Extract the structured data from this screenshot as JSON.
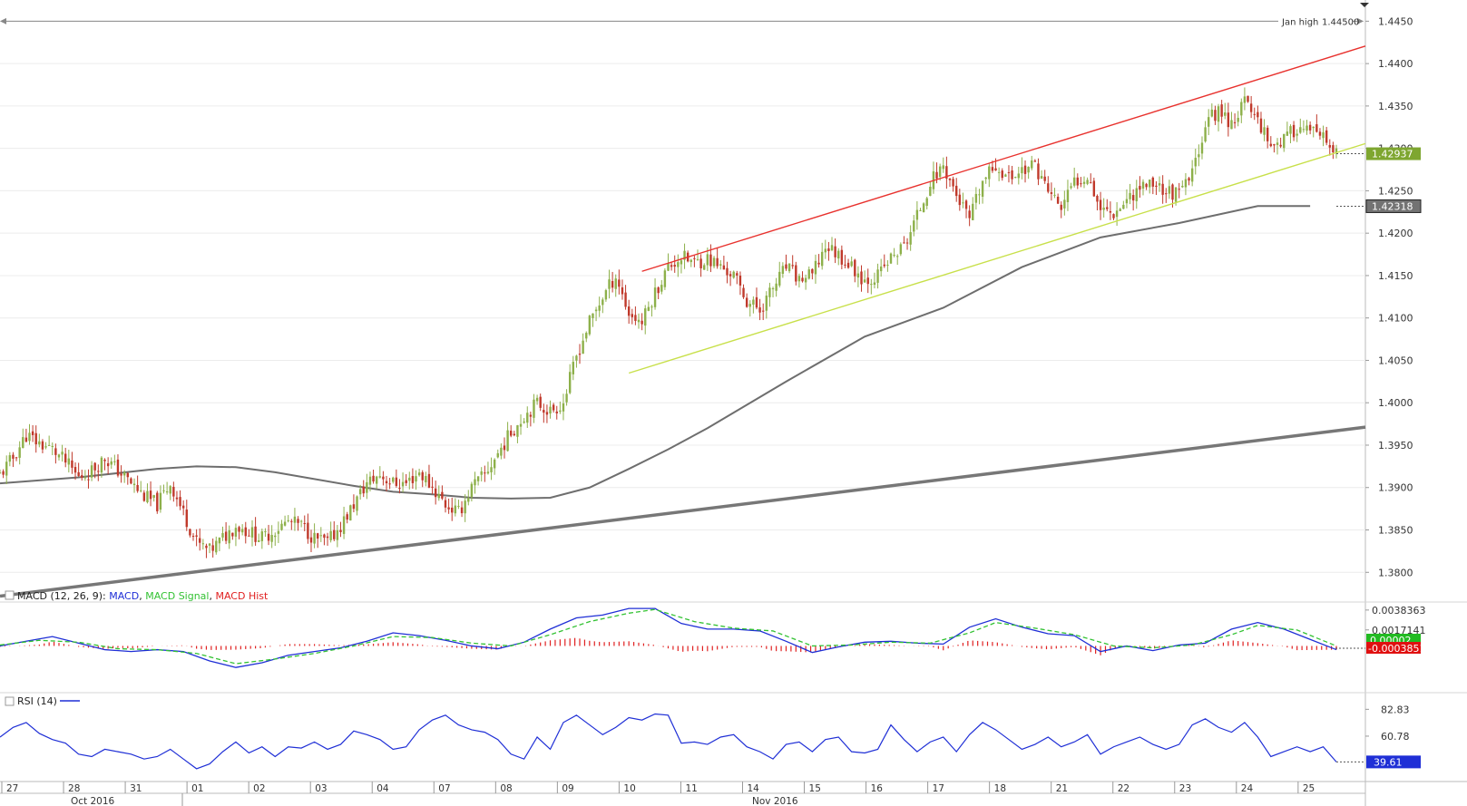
{
  "colors": {
    "up_candle": "#8db04a",
    "down_candle": "#c0392b",
    "channel_upper": "#e8322e",
    "channel_lower": "#c8e04a",
    "moving_average": "#6e6e6e",
    "long_trendline": "#777777",
    "macd_line": "#1f2fd6",
    "macd_signal": "#33c233",
    "macd_hist": "#e02020",
    "rsi_line": "#1f2fd6",
    "grid": "#ececec"
  },
  "chart_data": [
    {
      "type": "candlestick",
      "panel": "price",
      "y_ticks": [
        "1.4450",
        "1.4400",
        "1.4350",
        "1.4300",
        "1.4250",
        "1.4200",
        "1.4150",
        "1.4100",
        "1.4050",
        "1.4000",
        "1.3950",
        "1.3900",
        "1.3850",
        "1.3800"
      ],
      "ylim": [
        1.3765,
        1.4475
      ],
      "x_labels": [
        "27",
        "28",
        "31",
        "01",
        "02",
        "03",
        "04",
        "07",
        "08",
        "09",
        "10",
        "11",
        "14",
        "15",
        "16",
        "17",
        "18",
        "21",
        "22",
        "23",
        "24",
        "25"
      ],
      "x_month_labels": [
        "Oct 2016",
        "Nov 2016"
      ],
      "annotations": {
        "jan_high_label": "Jan high",
        "jan_high_value": "1.44500",
        "jan_high_level": 1.445
      },
      "badges": {
        "last_price": "1.42937",
        "ma_value": "1.42318"
      },
      "close_path": [
        [
          0,
          1.3915
        ],
        [
          4,
          1.3935
        ],
        [
          8,
          1.3962
        ],
        [
          12,
          1.3952
        ],
        [
          16,
          1.3945
        ],
        [
          20,
          1.393
        ],
        [
          24,
          1.3912
        ],
        [
          28,
          1.392
        ],
        [
          32,
          1.3935
        ],
        [
          36,
          1.392
        ],
        [
          40,
          1.3905
        ],
        [
          44,
          1.389
        ],
        [
          48,
          1.388
        ],
        [
          52,
          1.3905
        ],
        [
          56,
          1.387
        ],
        [
          60,
          1.3835
        ],
        [
          64,
          1.3825
        ],
        [
          68,
          1.384
        ],
        [
          72,
          1.3855
        ],
        [
          76,
          1.3848
        ],
        [
          80,
          1.384
        ],
        [
          84,
          1.385
        ],
        [
          88,
          1.386
        ],
        [
          92,
          1.3855
        ],
        [
          96,
          1.384
        ],
        [
          100,
          1.3835
        ],
        [
          104,
          1.3855
        ],
        [
          108,
          1.388
        ],
        [
          112,
          1.3905
        ],
        [
          116,
          1.3915
        ],
        [
          120,
          1.3905
        ],
        [
          124,
          1.3905
        ],
        [
          128,
          1.3918
        ],
        [
          132,
          1.39
        ],
        [
          136,
          1.388
        ],
        [
          140,
          1.387
        ],
        [
          144,
          1.39
        ],
        [
          148,
          1.3915
        ],
        [
          152,
          1.394
        ],
        [
          156,
          1.3965
        ],
        [
          160,
          1.3985
        ],
        [
          164,
          1.4
        ],
        [
          168,
          1.399
        ],
        [
          172,
          1.4
        ],
        [
          176,
          1.4055
        ],
        [
          180,
          1.4095
        ],
        [
          184,
          1.4125
        ],
        [
          188,
          1.415
        ],
        [
          192,
          1.4105
        ],
        [
          196,
          1.4095
        ],
        [
          200,
          1.413
        ],
        [
          204,
          1.416
        ],
        [
          208,
          1.4172
        ],
        [
          212,
          1.4165
        ],
        [
          216,
          1.417
        ],
        [
          220,
          1.416
        ],
        [
          224,
          1.415
        ],
        [
          228,
          1.412
        ],
        [
          232,
          1.411
        ],
        [
          236,
          1.4135
        ],
        [
          240,
          1.416
        ],
        [
          244,
          1.4145
        ],
        [
          248,
          1.415
        ],
        [
          252,
          1.4185
        ],
        [
          256,
          1.4175
        ],
        [
          260,
          1.416
        ],
        [
          264,
          1.4145
        ],
        [
          268,
          1.415
        ],
        [
          272,
          1.417
        ],
        [
          276,
          1.4185
        ],
        [
          280,
          1.422
        ],
        [
          284,
          1.426
        ],
        [
          288,
          1.428
        ],
        [
          292,
          1.4245
        ],
        [
          296,
          1.4215
        ],
        [
          300,
          1.426
        ],
        [
          304,
          1.428
        ],
        [
          308,
          1.4265
        ],
        [
          312,
          1.4275
        ],
        [
          316,
          1.428
        ],
        [
          320,
          1.425
        ],
        [
          324,
          1.423
        ],
        [
          328,
          1.426
        ],
        [
          332,
          1.427
        ],
        [
          336,
          1.423
        ],
        [
          340,
          1.4225
        ],
        [
          344,
          1.424
        ],
        [
          348,
          1.4255
        ],
        [
          352,
          1.426
        ],
        [
          356,
          1.425
        ],
        [
          360,
          1.4245
        ],
        [
          364,
          1.427
        ],
        [
          368,
          1.433
        ],
        [
          372,
          1.4345
        ],
        [
          376,
          1.433
        ],
        [
          380,
          1.4355
        ],
        [
          384,
          1.4335
        ],
        [
          388,
          1.4305
        ],
        [
          392,
          1.431
        ],
        [
          396,
          1.4325
        ],
        [
          400,
          1.432
        ],
        [
          404,
          1.431
        ],
        [
          408,
          1.4294
        ]
      ],
      "moving_average_path": [
        [
          0,
          1.3905
        ],
        [
          24,
          1.3912
        ],
        [
          48,
          1.3922
        ],
        [
          60,
          1.3925
        ],
        [
          72,
          1.3924
        ],
        [
          84,
          1.3918
        ],
        [
          108,
          1.3902
        ],
        [
          120,
          1.3895
        ],
        [
          132,
          1.3892
        ],
        [
          144,
          1.3888
        ],
        [
          156,
          1.3887
        ],
        [
          168,
          1.3888
        ],
        [
          180,
          1.39
        ],
        [
          192,
          1.3922
        ],
        [
          204,
          1.3945
        ],
        [
          216,
          1.397
        ],
        [
          240,
          1.4025
        ],
        [
          264,
          1.4078
        ],
        [
          288,
          1.4112
        ],
        [
          312,
          1.416
        ],
        [
          336,
          1.4195
        ],
        [
          360,
          1.4212
        ],
        [
          384,
          1.4232
        ],
        [
          400,
          1.4232
        ]
      ],
      "channel_upper": [
        [
          196,
          1.4155
        ],
        [
          408,
          1.441
        ]
      ],
      "channel_lower": [
        [
          192,
          1.4035
        ],
        [
          408,
          1.4295
        ]
      ],
      "long_trendline": [
        [
          0,
          1.3772
        ],
        [
          408,
          1.3967
        ]
      ]
    },
    {
      "type": "line",
      "panel": "macd",
      "legend": {
        "prefix": "MACD (12, 26, 9): ",
        "macd": "MACD",
        "signal": "MACD Signal",
        "hist": "MACD Hist"
      },
      "y_ticks": [
        "0.0038363",
        "0.0017141"
      ],
      "ylim": [
        -0.0048,
        0.0045
      ],
      "badges": {
        "signal_value": "0.00002",
        "hist_value": "-0.0003851"
      },
      "macd_path": [
        [
          0,
          0.0
        ],
        [
          8,
          0.0005
        ],
        [
          16,
          0.001
        ],
        [
          24,
          0.0003
        ],
        [
          32,
          -0.0004
        ],
        [
          40,
          -0.0006
        ],
        [
          48,
          -0.0004
        ],
        [
          56,
          -0.0006
        ],
        [
          64,
          -0.0016
        ],
        [
          72,
          -0.0023
        ],
        [
          80,
          -0.0018
        ],
        [
          88,
          -0.001
        ],
        [
          96,
          -0.0006
        ],
        [
          104,
          -0.0002
        ],
        [
          112,
          0.0005
        ],
        [
          120,
          0.0014
        ],
        [
          128,
          0.0011
        ],
        [
          136,
          0.0006
        ],
        [
          144,
          0.0
        ],
        [
          152,
          -0.0003
        ],
        [
          160,
          0.0004
        ],
        [
          168,
          0.0018
        ],
        [
          176,
          0.003
        ],
        [
          184,
          0.0033
        ],
        [
          192,
          0.004
        ],
        [
          200,
          0.004
        ],
        [
          208,
          0.0024
        ],
        [
          216,
          0.0018
        ],
        [
          224,
          0.0018
        ],
        [
          232,
          0.0016
        ],
        [
          240,
          0.0005
        ],
        [
          248,
          -0.0007
        ],
        [
          256,
          -0.0001
        ],
        [
          264,
          0.0004
        ],
        [
          272,
          0.0005
        ],
        [
          280,
          0.0003
        ],
        [
          288,
          0.0002
        ],
        [
          296,
          0.002
        ],
        [
          304,
          0.0029
        ],
        [
          312,
          0.002
        ],
        [
          320,
          0.0013
        ],
        [
          328,
          0.0011
        ],
        [
          336,
          -0.0006
        ],
        [
          344,
          0.0
        ],
        [
          352,
          -0.0005
        ],
        [
          360,
          0.0001
        ],
        [
          368,
          0.0003
        ],
        [
          376,
          0.0018
        ],
        [
          384,
          0.0025
        ],
        [
          392,
          0.0018
        ],
        [
          400,
          0.0007
        ],
        [
          408,
          -0.0004
        ]
      ],
      "signal_path": [
        [
          0,
          0.0001
        ],
        [
          12,
          0.0006
        ],
        [
          24,
          0.0004
        ],
        [
          36,
          -0.0003
        ],
        [
          48,
          -0.0004
        ],
        [
          60,
          -0.0008
        ],
        [
          72,
          -0.0019
        ],
        [
          84,
          -0.0014
        ],
        [
          96,
          -0.0008
        ],
        [
          108,
          0.0
        ],
        [
          120,
          0.001
        ],
        [
          132,
          0.0009
        ],
        [
          144,
          0.0003
        ],
        [
          156,
          0.0
        ],
        [
          168,
          0.0012
        ],
        [
          180,
          0.0026
        ],
        [
          192,
          0.0035
        ],
        [
          200,
          0.0039
        ],
        [
          212,
          0.0026
        ],
        [
          224,
          0.0019
        ],
        [
          236,
          0.0016
        ],
        [
          248,
          0.0
        ],
        [
          260,
          0.0001
        ],
        [
          272,
          0.0004
        ],
        [
          284,
          0.0003
        ],
        [
          296,
          0.0014
        ],
        [
          304,
          0.0025
        ],
        [
          316,
          0.0019
        ],
        [
          328,
          0.0012
        ],
        [
          340,
          0.0
        ],
        [
          352,
          -0.0002
        ],
        [
          364,
          0.0001
        ],
        [
          376,
          0.0012
        ],
        [
          384,
          0.0022
        ],
        [
          396,
          0.0017
        ],
        [
          408,
          0.0
        ]
      ]
    },
    {
      "type": "line",
      "panel": "rsi",
      "legend": "RSI (14)",
      "y_ticks": [
        "82.83",
        "60.78"
      ],
      "ylim": [
        25,
        95
      ],
      "badge": "39.61",
      "rsi_path": [
        [
          0,
          60
        ],
        [
          4,
          68
        ],
        [
          8,
          72
        ],
        [
          12,
          63
        ],
        [
          16,
          58
        ],
        [
          20,
          55
        ],
        [
          24,
          46
        ],
        [
          28,
          44
        ],
        [
          32,
          50
        ],
        [
          36,
          48
        ],
        [
          40,
          46
        ],
        [
          44,
          42
        ],
        [
          48,
          44
        ],
        [
          52,
          50
        ],
        [
          56,
          42
        ],
        [
          60,
          34
        ],
        [
          64,
          38
        ],
        [
          68,
          48
        ],
        [
          72,
          56
        ],
        [
          76,
          47
        ],
        [
          80,
          52
        ],
        [
          84,
          44
        ],
        [
          88,
          52
        ],
        [
          92,
          51
        ],
        [
          96,
          56
        ],
        [
          100,
          50
        ],
        [
          104,
          54
        ],
        [
          108,
          65
        ],
        [
          112,
          62
        ],
        [
          116,
          58
        ],
        [
          120,
          50
        ],
        [
          124,
          52
        ],
        [
          128,
          66
        ],
        [
          132,
          74
        ],
        [
          136,
          78
        ],
        [
          140,
          70
        ],
        [
          144,
          66
        ],
        [
          148,
          64
        ],
        [
          152,
          58
        ],
        [
          156,
          46
        ],
        [
          160,
          42
        ],
        [
          164,
          60
        ],
        [
          168,
          50
        ],
        [
          172,
          72
        ],
        [
          176,
          78
        ],
        [
          180,
          70
        ],
        [
          184,
          62
        ],
        [
          188,
          68
        ],
        [
          192,
          76
        ],
        [
          196,
          74
        ],
        [
          200,
          79
        ],
        [
          204,
          78
        ],
        [
          208,
          55
        ],
        [
          212,
          56
        ],
        [
          216,
          54
        ],
        [
          220,
          60
        ],
        [
          224,
          62
        ],
        [
          228,
          52
        ],
        [
          232,
          48
        ],
        [
          236,
          42
        ],
        [
          240,
          54
        ],
        [
          244,
          56
        ],
        [
          248,
          48
        ],
        [
          252,
          58
        ],
        [
          256,
          60
        ],
        [
          260,
          48
        ],
        [
          264,
          47
        ],
        [
          268,
          50
        ],
        [
          272,
          70
        ],
        [
          276,
          58
        ],
        [
          280,
          48
        ],
        [
          284,
          56
        ],
        [
          288,
          60
        ],
        [
          292,
          48
        ],
        [
          296,
          62
        ],
        [
          300,
          72
        ],
        [
          304,
          66
        ],
        [
          308,
          58
        ],
        [
          312,
          50
        ],
        [
          316,
          54
        ],
        [
          320,
          60
        ],
        [
          324,
          52
        ],
        [
          328,
          56
        ],
        [
          332,
          62
        ],
        [
          336,
          46
        ],
        [
          340,
          52
        ],
        [
          344,
          56
        ],
        [
          348,
          60
        ],
        [
          352,
          54
        ],
        [
          356,
          50
        ],
        [
          360,
          54
        ],
        [
          364,
          70
        ],
        [
          368,
          75
        ],
        [
          372,
          68
        ],
        [
          376,
          64
        ],
        [
          380,
          72
        ],
        [
          384,
          60
        ],
        [
          388,
          44
        ],
        [
          392,
          48
        ],
        [
          396,
          52
        ],
        [
          400,
          48
        ],
        [
          404,
          52
        ],
        [
          408,
          39.61
        ]
      ]
    }
  ]
}
